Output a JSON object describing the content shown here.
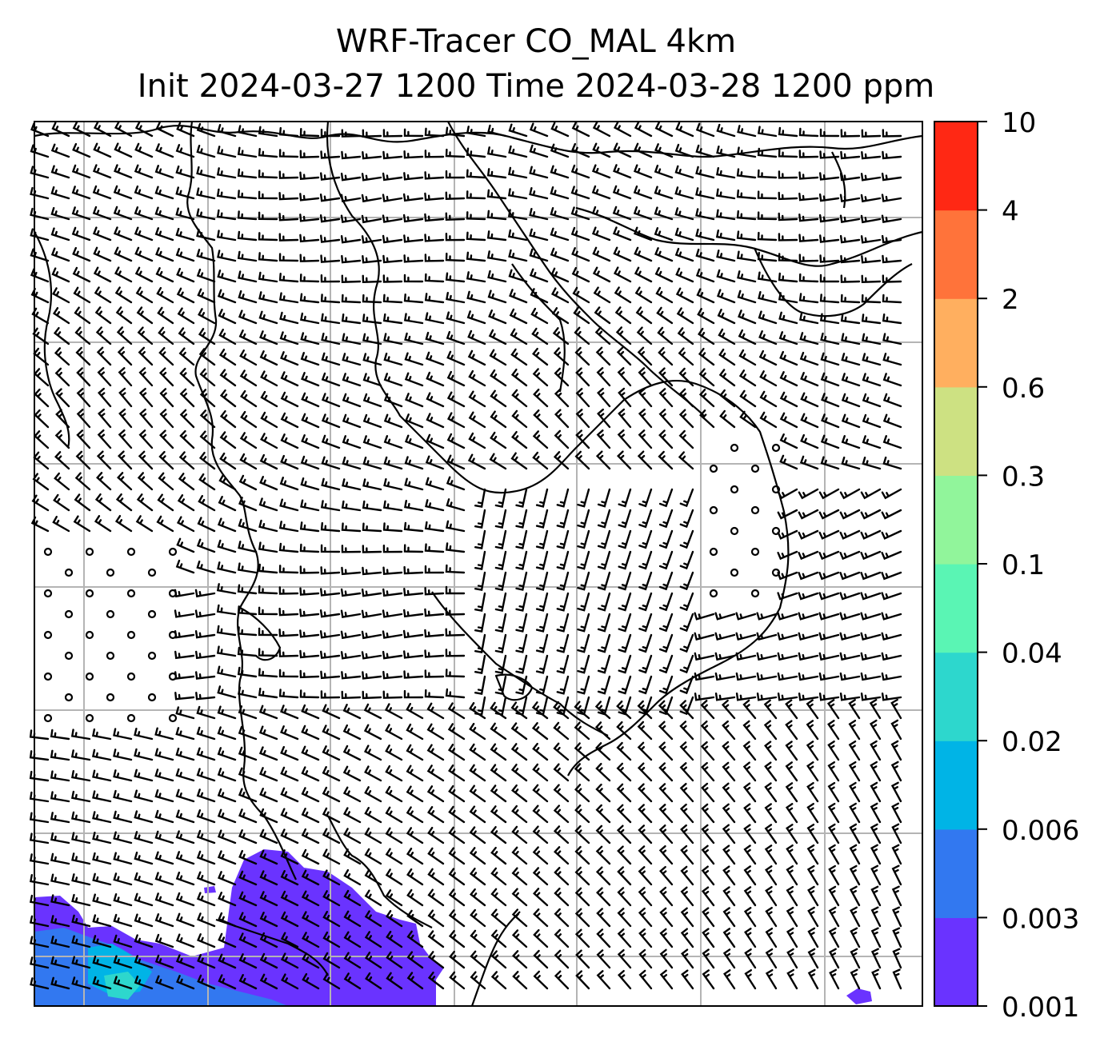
{
  "title": {
    "line1": "WRF-Tracer CO_MAL 4km",
    "line2": "Init 2024-03-27 1200 Time 2024-03-28 1200 ppm"
  },
  "colorbar": {
    "levels": [
      "0.001",
      "0.003",
      "0.006",
      "0.02",
      "0.04",
      "0.1",
      "0.3",
      "0.6",
      "2",
      "4",
      "10"
    ],
    "colors": [
      "#6a33ff",
      "#3278f0",
      "#00b4e6",
      "#2dd7cd",
      "#5af5b4",
      "#91f59b",
      "#cde182",
      "#ffaf5f",
      "#ff733a",
      "#ff2814"
    ]
  },
  "map": {
    "background": "#ffffff",
    "grid_color": "#b4b4b4",
    "coastline_color": "#000000",
    "barb_color": "#000000"
  }
}
